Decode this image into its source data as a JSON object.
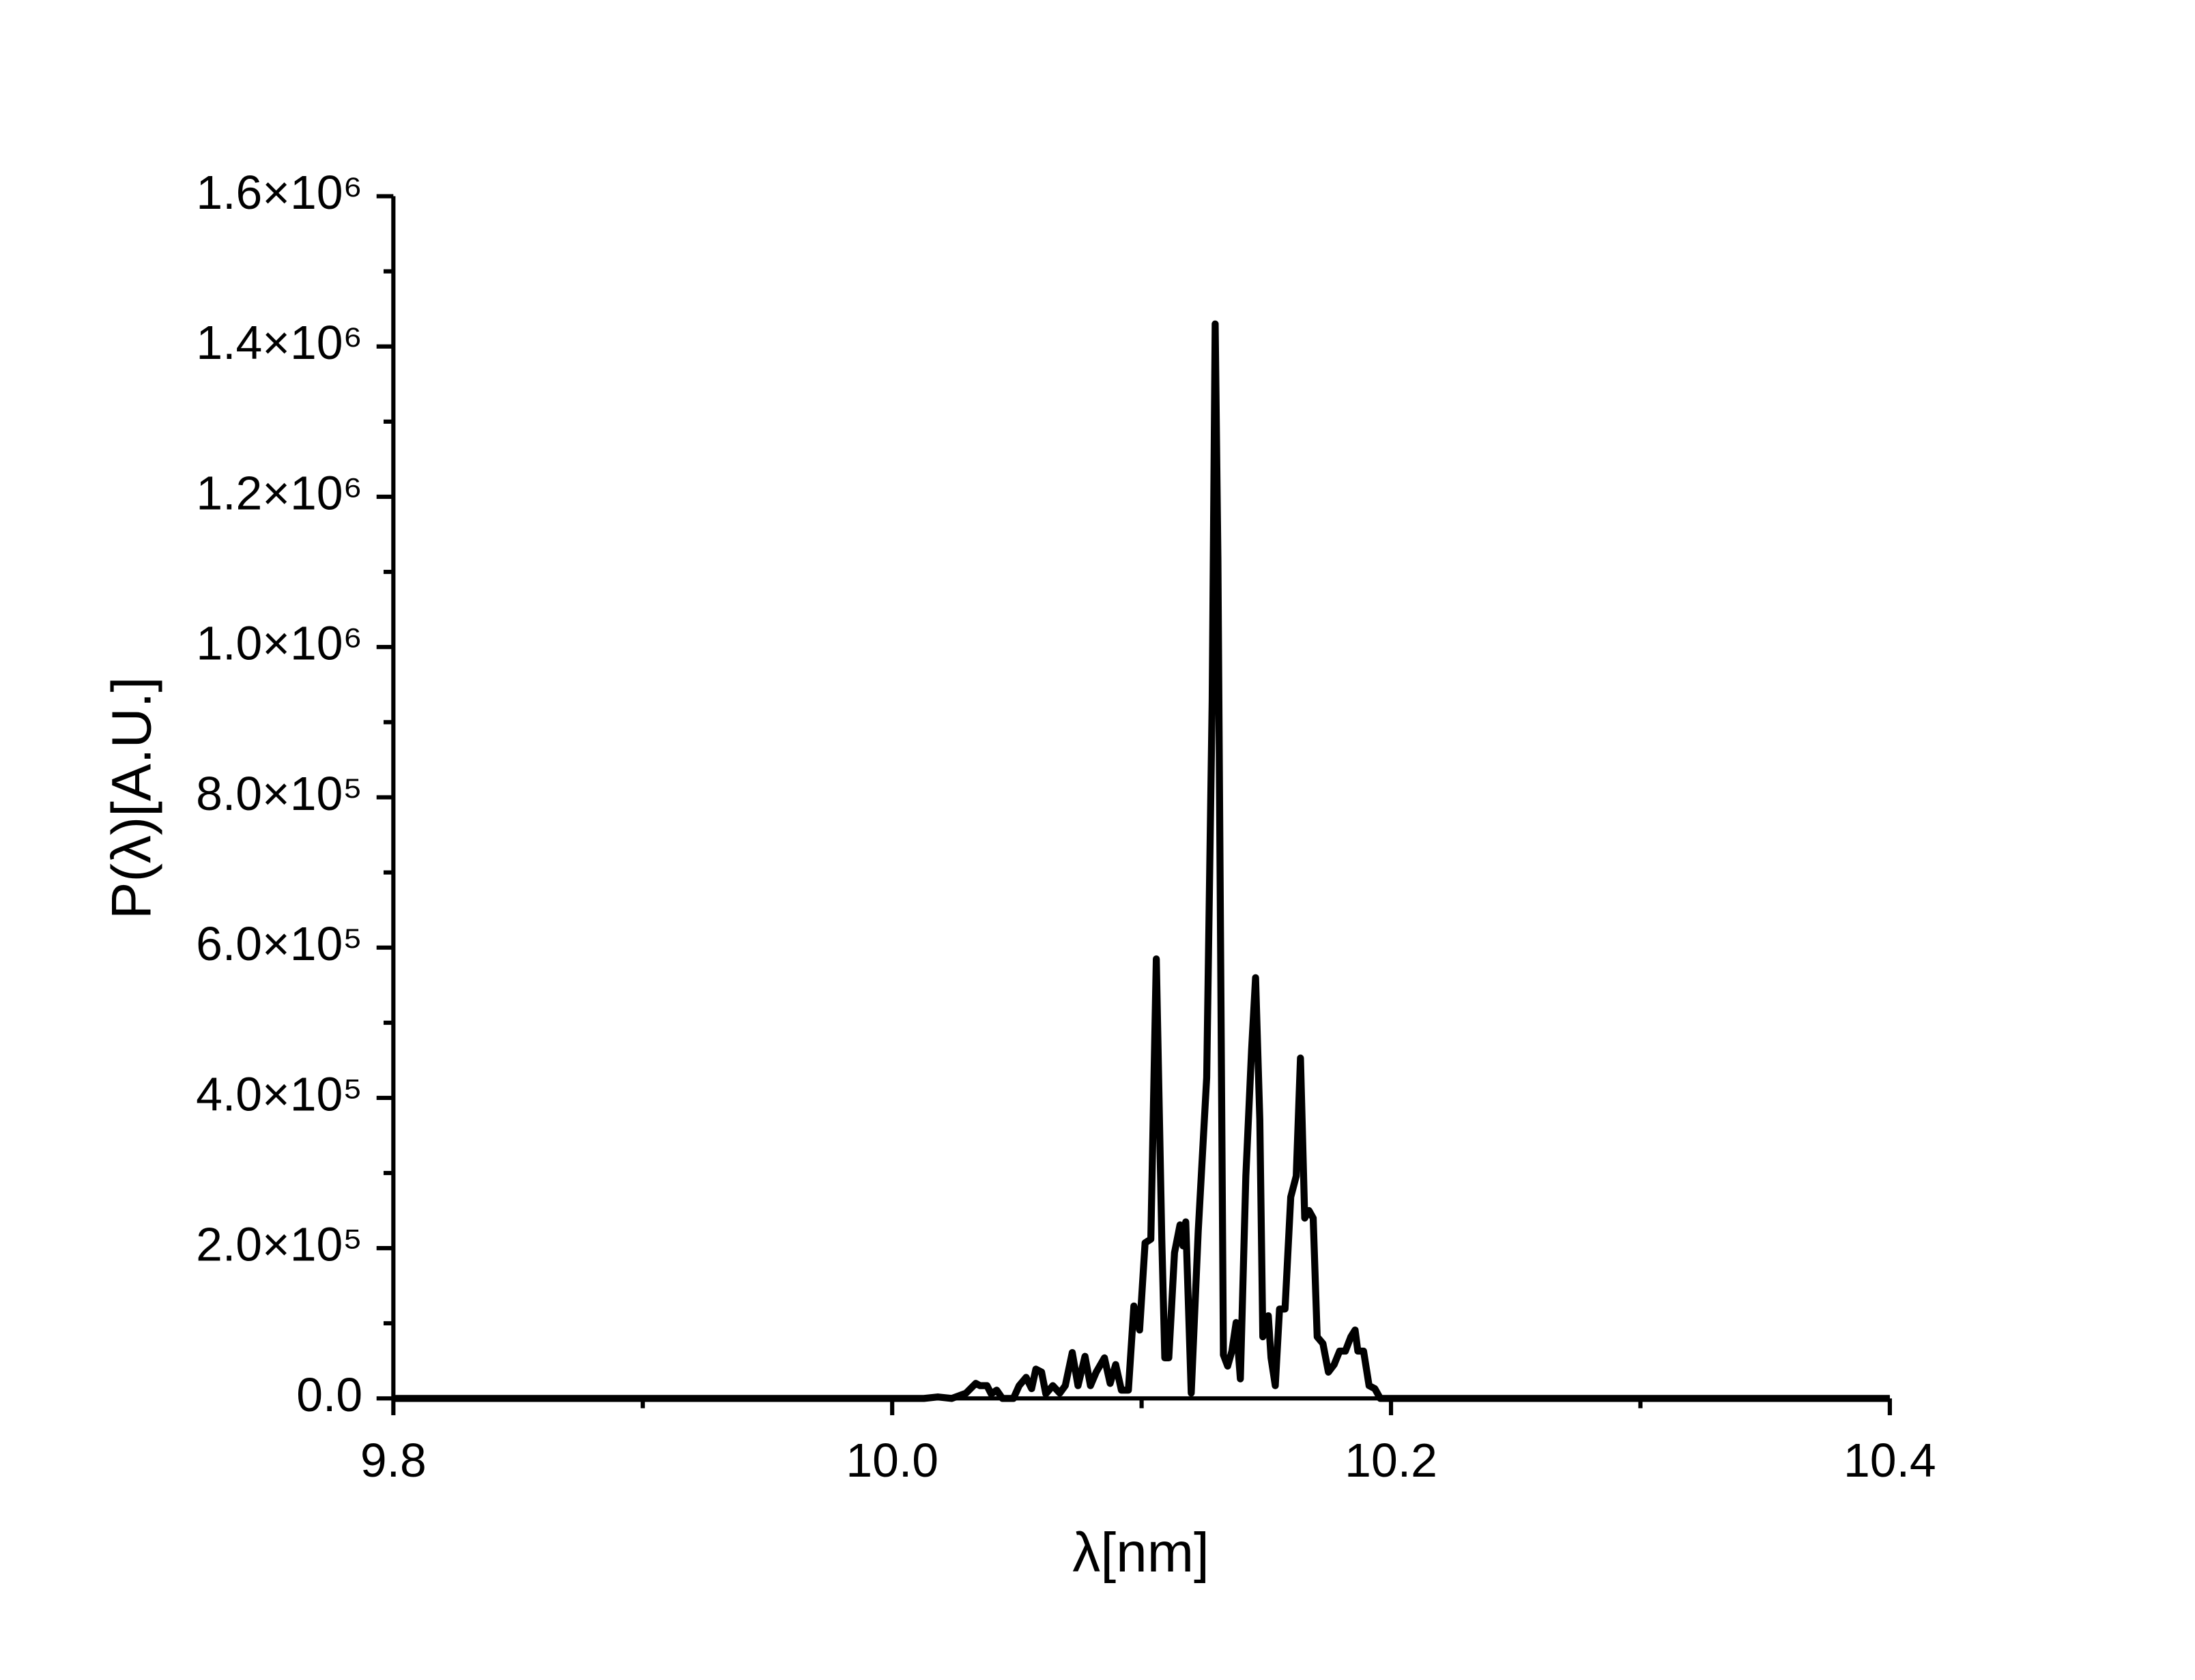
{
  "chart_data": {
    "type": "line",
    "xlabel": "λ[nm]",
    "ylabel": "P(λ)[A.U.]",
    "xlim": [
      9.8,
      10.4
    ],
    "xticks": [
      9.8,
      {
        "value": 10,
        "label": "10.0"
      },
      10.2,
      10.4
    ],
    "xminorticks": [
      9.9,
      10.1,
      10.3
    ],
    "ylim": [
      0,
      1600000
    ],
    "yticks": [
      {
        "value": 0,
        "label": "0.0"
      },
      {
        "value": 200000,
        "label": "2.0×10⁵"
      },
      {
        "value": 400000,
        "label": "4.0×10⁵"
      },
      {
        "value": 600000,
        "label": "6.0×10⁵"
      },
      {
        "value": 800000,
        "label": "8.0×10⁵"
      },
      {
        "value": 1000000,
        "label": "1.0×10⁶"
      },
      {
        "value": 1200000,
        "label": "1.2×10⁶"
      },
      {
        "value": 1400000,
        "label": "1.4×10⁶"
      },
      {
        "value": 1600000,
        "label": "1.6×10⁶"
      }
    ],
    "yminorticks": [
      100000,
      300000,
      500000,
      700000,
      900000,
      1100000,
      1300000,
      1500000
    ],
    "series": [
      {
        "color": "#000000",
        "x": [
          9.8,
          10.0127,
          10.0183,
          10.0239,
          10.0296,
          10.0335,
          10.0352,
          10.038,
          10.0397,
          10.0419,
          10.0442,
          10.0486,
          10.0509,
          10.0537,
          10.0559,
          10.0576,
          10.0599,
          10.0616,
          10.0644,
          10.0672,
          10.0694,
          10.0722,
          10.0745,
          10.0773,
          10.0795,
          10.0818,
          10.0851,
          10.0874,
          10.0896,
          10.0919,
          10.0947,
          10.0969,
          10.0992,
          10.1014,
          10.1037,
          10.1059,
          10.1081,
          10.1093,
          10.1109,
          10.1132,
          10.1154,
          10.1166,
          10.1177,
          10.1199,
          10.1227,
          10.1261,
          10.1283,
          10.1295,
          10.1306,
          10.1328,
          10.1345,
          10.1362,
          10.1379,
          10.1396,
          10.1418,
          10.1441,
          10.1457,
          10.1474,
          10.1486,
          10.1508,
          10.1519,
          10.1536,
          10.1553,
          10.1575,
          10.1598,
          10.162,
          10.1637,
          10.1654,
          10.1671,
          10.1688,
          10.1704,
          10.1727,
          10.1749,
          10.1772,
          10.1794,
          10.1817,
          10.1839,
          10.1856,
          10.1867,
          10.189,
          10.1912,
          10.1935,
          10.1957,
          10.2036,
          10.4
        ],
        "values": [
          0,
          0,
          2000,
          0,
          7000,
          20000,
          17000,
          17000,
          6000,
          11000,
          0,
          0,
          17000,
          28000,
          13000,
          39000,
          35000,
          6000,
          17000,
          7000,
          17000,
          61000,
          17000,
          56000,
          17000,
          35000,
          54000,
          20000,
          45000,
          11000,
          11000,
          123000,
          91000,
          207000,
          212000,
          585000,
          212000,
          54000,
          54000,
          194000,
          231000,
          203000,
          235000,
          7000,
          222000,
          427000,
          929000,
          1430000,
          1116000,
          58000,
          43000,
          63000,
          101000,
          26000,
          296000,
          464000,
          560000,
          371000,
          82000,
          110000,
          54000,
          17000,
          119000,
          119000,
          268000,
          296000,
          453000,
          240000,
          250000,
          240000,
          82000,
          73000,
          35000,
          45000,
          63000,
          63000,
          82000,
          91000,
          63000,
          63000,
          17000,
          13000,
          0,
          0,
          0
        ]
      }
    ]
  }
}
